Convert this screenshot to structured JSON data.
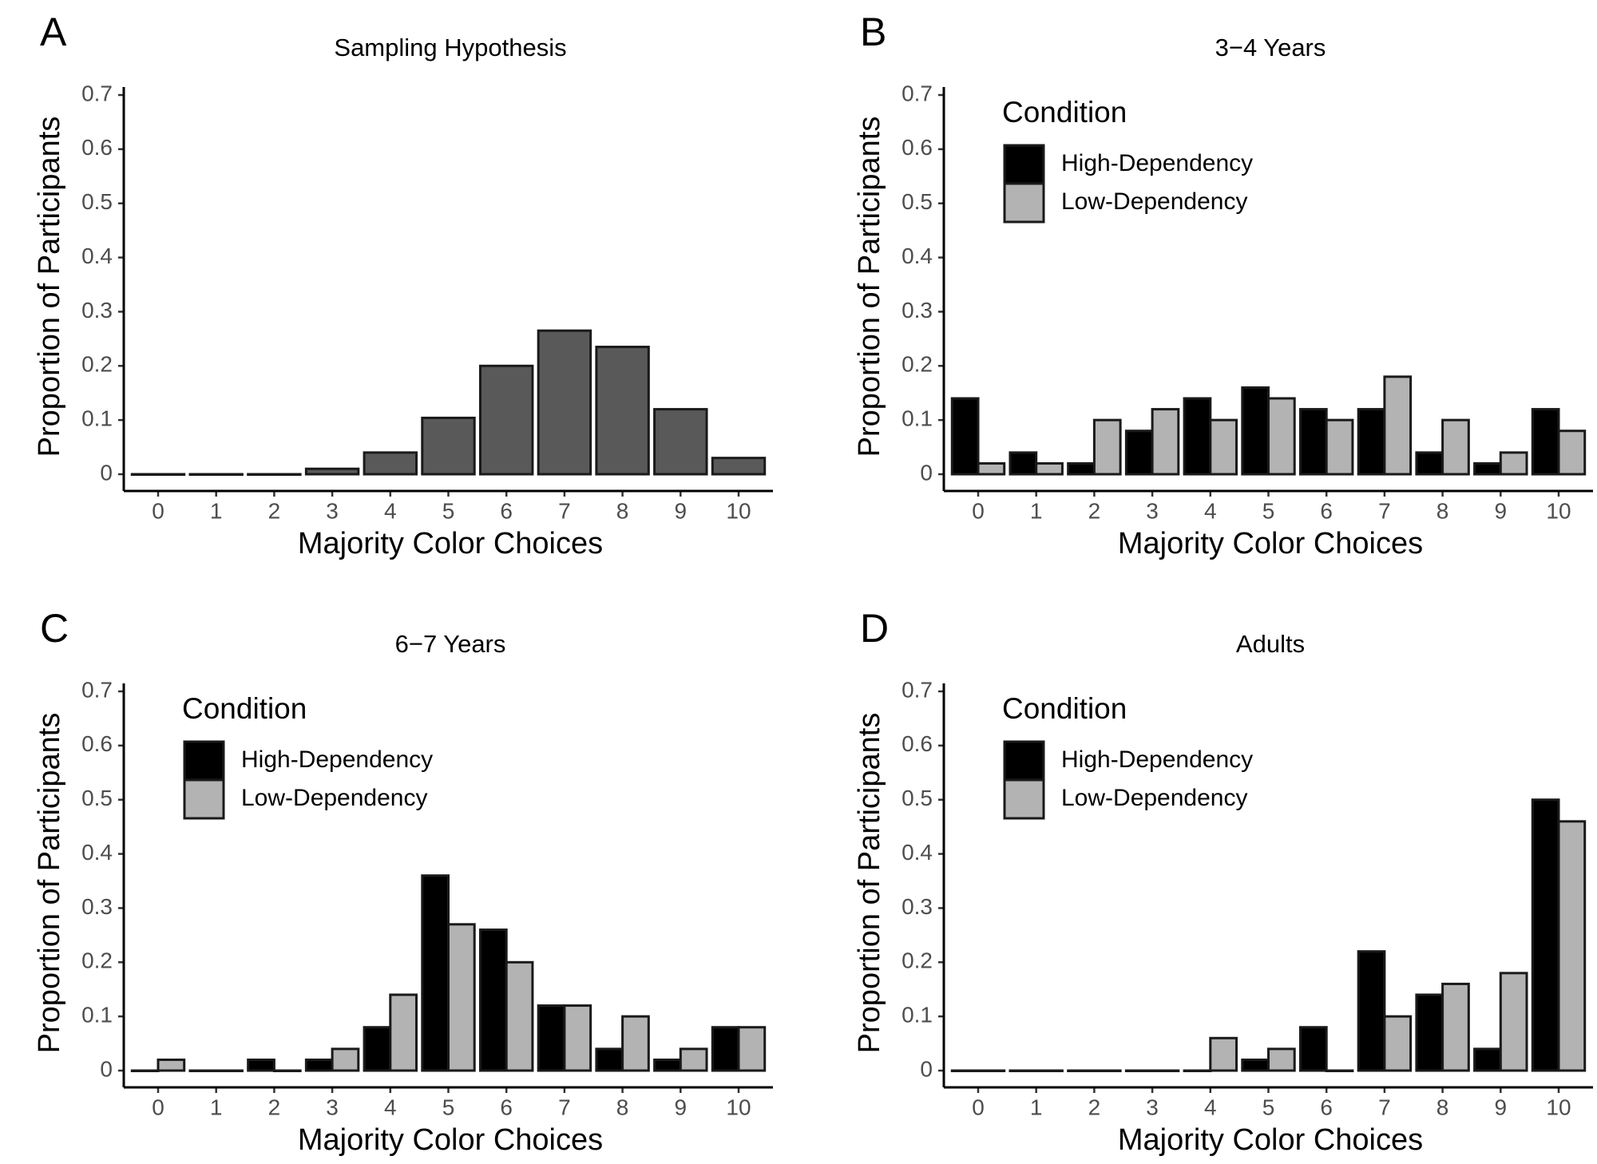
{
  "chart_data": [
    {
      "type": "bar",
      "panel_label": "A",
      "title": "Sampling Hypothesis",
      "x_label": "Majority Color Choices",
      "y_label": "Proportion of Participants",
      "categories": [
        "0",
        "1",
        "2",
        "3",
        "4",
        "5",
        "6",
        "7",
        "8",
        "9",
        "10"
      ],
      "series": [
        {
          "name": null,
          "color": "#595959",
          "values": [
            0,
            0,
            0,
            0.01,
            0.04,
            0.104,
            0.2,
            0.265,
            0.235,
            0.12,
            0.03
          ]
        }
      ],
      "ylim": [
        0,
        0.7
      ],
      "yticks": [
        0,
        0.1,
        0.2,
        0.3,
        0.4,
        0.5,
        0.6,
        0.7
      ],
      "legend": false
    },
    {
      "type": "bar",
      "panel_label": "B",
      "title": "3−4 Years",
      "x_label": "Majority Color Choices",
      "y_label": "Proportion of Participants",
      "categories": [
        "0",
        "1",
        "2",
        "3",
        "4",
        "5",
        "6",
        "7",
        "8",
        "9",
        "10"
      ],
      "series": [
        {
          "name": "High-Dependency",
          "color": "#000000",
          "values": [
            0.14,
            0.04,
            0.02,
            0.08,
            0.14,
            0.16,
            0.12,
            0.12,
            0.04,
            0.02,
            0.12
          ]
        },
        {
          "name": "Low-Dependency",
          "color": "#b3b3b3",
          "values": [
            0.02,
            0.02,
            0.1,
            0.12,
            0.1,
            0.14,
            0.1,
            0.18,
            0.1,
            0.04,
            0.08
          ]
        }
      ],
      "ylim": [
        0,
        0.7
      ],
      "yticks": [
        0,
        0.1,
        0.2,
        0.3,
        0.4,
        0.5,
        0.6,
        0.7
      ],
      "legend": true,
      "legend_title": "Condition",
      "legend_position": "top-left"
    },
    {
      "type": "bar",
      "panel_label": "C",
      "title": "6−7 Years",
      "x_label": "Majority Color Choices",
      "y_label": "Proportion of Participants",
      "categories": [
        "0",
        "1",
        "2",
        "3",
        "4",
        "5",
        "6",
        "7",
        "8",
        "9",
        "10"
      ],
      "series": [
        {
          "name": "High-Dependency",
          "color": "#000000",
          "values": [
            0,
            0,
            0.02,
            0.02,
            0.08,
            0.36,
            0.26,
            0.12,
            0.04,
            0.02,
            0.08
          ]
        },
        {
          "name": "Low-Dependency",
          "color": "#b3b3b3",
          "values": [
            0.02,
            0,
            0,
            0.04,
            0.14,
            0.27,
            0.2,
            0.12,
            0.1,
            0.04,
            0.08
          ]
        }
      ],
      "ylim": [
        0,
        0.7
      ],
      "yticks": [
        0,
        0.1,
        0.2,
        0.3,
        0.4,
        0.5,
        0.6,
        0.7
      ],
      "legend": true,
      "legend_title": "Condition",
      "legend_position": "top-left"
    },
    {
      "type": "bar",
      "panel_label": "D",
      "title": "Adults",
      "x_label": "Majority Color Choices",
      "y_label": "Proportion of Participants",
      "categories": [
        "0",
        "1",
        "2",
        "3",
        "4",
        "5",
        "6",
        "7",
        "8",
        "9",
        "10"
      ],
      "series": [
        {
          "name": "High-Dependency",
          "color": "#000000",
          "values": [
            0,
            0,
            0,
            0,
            0,
            0.02,
            0.08,
            0.22,
            0.14,
            0.04,
            0.5
          ]
        },
        {
          "name": "Low-Dependency",
          "color": "#b3b3b3",
          "values": [
            0,
            0,
            0,
            0,
            0.06,
            0.04,
            0,
            0.1,
            0.16,
            0.18,
            0.46
          ]
        }
      ],
      "ylim": [
        0,
        0.7
      ],
      "yticks": [
        0,
        0.1,
        0.2,
        0.3,
        0.4,
        0.5,
        0.6,
        0.7
      ],
      "legend": true,
      "legend_title": "Condition",
      "legend_position": "top-left"
    }
  ]
}
